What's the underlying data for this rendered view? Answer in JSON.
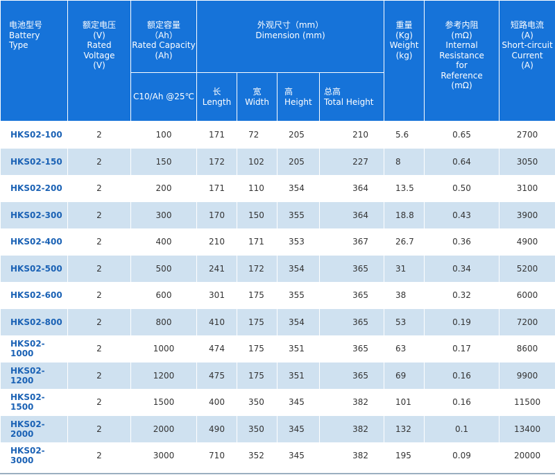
{
  "header": {
    "model": [
      "电池型号",
      "Battery",
      "Type"
    ],
    "voltage": [
      "额定电压",
      "(V)",
      "Rated",
      "Voltage",
      "(V)"
    ],
    "capacity": [
      "额定容量",
      "（Ah）",
      "Rated Capacity",
      "(Ah)"
    ],
    "dimension": [
      "外观尺寸（mm）",
      "Dimension (mm)"
    ],
    "weight": [
      "重量",
      "(Kg)",
      "Weight",
      "(kg)"
    ],
    "resistance": [
      "参考内阻",
      "(mΩ)",
      "Internal",
      "Resistance",
      "for",
      "Reference",
      "(mΩ)"
    ],
    "short_circuit": [
      "短路电流",
      "(A)",
      "Short-circuit",
      "Current",
      "(A)"
    ],
    "capacity_sub": "C10/Ah @25℃",
    "length": [
      "长",
      "Length"
    ],
    "width": [
      "宽",
      "Width"
    ],
    "height": [
      "高",
      "Height"
    ],
    "total_height": [
      "总高",
      "Total Height"
    ]
  },
  "rows": [
    [
      "HKS02-100",
      "2",
      "100",
      "171",
      "72",
      "205",
      "210",
      "5.6",
      "0.65",
      "2700"
    ],
    [
      "HKS02-150",
      "2",
      "150",
      "172",
      "102",
      "205",
      "227",
      "8",
      "0.64",
      "3050"
    ],
    [
      "HKS02-200",
      "2",
      "200",
      "171",
      "110",
      "354",
      "364",
      "13.5",
      "0.50",
      "3100"
    ],
    [
      "HKS02-300",
      "2",
      "300",
      "170",
      "150",
      "355",
      "364",
      "18.8",
      "0.43",
      "3900"
    ],
    [
      "HKS02-400",
      "2",
      "400",
      "210",
      "171",
      "353",
      "367",
      "26.7",
      "0.36",
      "4900"
    ],
    [
      "HKS02-500",
      "2",
      "500",
      "241",
      "172",
      "354",
      "365",
      "31",
      "0.34",
      "5200"
    ],
    [
      "HKS02-600",
      "2",
      "600",
      "301",
      "175",
      "355",
      "365",
      "38",
      "0.32",
      "6000"
    ],
    [
      "HKS02-800",
      "2",
      "800",
      "410",
      "175",
      "354",
      "365",
      "53",
      "0.19",
      "7200"
    ],
    [
      "HKS02-1000",
      "2",
      "1000",
      "474",
      "175",
      "351",
      "365",
      "63",
      "0.17",
      "8600"
    ],
    [
      "HKS02-1200",
      "2",
      "1200",
      "475",
      "175",
      "351",
      "365",
      "69",
      "0.16",
      "9900"
    ],
    [
      "HKS02-1500",
      "2",
      "1500",
      "400",
      "350",
      "345",
      "382",
      "101",
      "0.16",
      "11500"
    ],
    [
      "HKS02-2000",
      "2",
      "2000",
      "490",
      "350",
      "345",
      "382",
      "132",
      "0.1",
      "13400"
    ],
    [
      "HKS02-3000",
      "2",
      "3000",
      "710",
      "352",
      "345",
      "382",
      "195",
      "0.09",
      "20000"
    ]
  ],
  "colors": {
    "header_bg": "#1673d9",
    "stripe": "#cfe1f0",
    "model_text": "#1b62b5"
  }
}
